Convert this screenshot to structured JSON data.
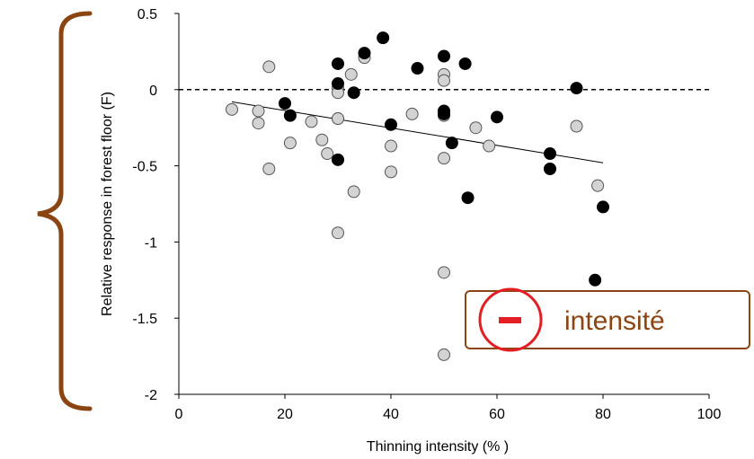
{
  "colors": {
    "bracket": "#8B4513",
    "badge_border": "#8B4513",
    "badge_text": "#8B4513",
    "minus_red": "#E31E24",
    "series_black": "#000000",
    "series_gray": "#D3D3D3"
  },
  "annotation": {
    "label": "intensité",
    "sign_icon": "minus-circle-icon"
  },
  "chart_data": {
    "type": "scatter",
    "title": "",
    "xlabel": "Thinning intensity (% )",
    "ylabel": "Relative response in forest floor (F)",
    "xlim": [
      0,
      100
    ],
    "ylim": [
      -2,
      0.5
    ],
    "x_ticks": [
      "0",
      "20",
      "40",
      "60",
      "80",
      "100"
    ],
    "y_ticks": [
      "0.5",
      "0",
      "-0.5",
      "-1",
      "-1.5",
      "-2"
    ],
    "grid": false,
    "reference_line": {
      "y": 0,
      "style": "dashed"
    },
    "trend_line": {
      "x": [
        10,
        80
      ],
      "y": [
        -0.08,
        -0.48
      ]
    },
    "series": [
      {
        "marker": "black-filled-circle",
        "points": [
          [
            20,
            -0.09
          ],
          [
            21,
            -0.17
          ],
          [
            30,
            0.17
          ],
          [
            30,
            0.04
          ],
          [
            30,
            -0.46
          ],
          [
            33,
            -0.02
          ],
          [
            35,
            0.24
          ],
          [
            38.5,
            0.34
          ],
          [
            40,
            -0.23
          ],
          [
            45,
            0.14
          ],
          [
            50,
            0.22
          ],
          [
            50,
            -0.14
          ],
          [
            50,
            -0.16
          ],
          [
            51.5,
            -0.35
          ],
          [
            54,
            0.17
          ],
          [
            54.5,
            -0.71
          ],
          [
            60,
            -0.18
          ],
          [
            70,
            -0.42
          ],
          [
            70,
            -0.52
          ],
          [
            75,
            0.01
          ],
          [
            78.5,
            -1.25
          ],
          [
            80,
            -0.77
          ]
        ]
      },
      {
        "marker": "gray-filled-circle",
        "points": [
          [
            10,
            -0.13
          ],
          [
            15,
            -0.14
          ],
          [
            15,
            -0.22
          ],
          [
            17,
            0.15
          ],
          [
            17,
            -0.52
          ],
          [
            21,
            -0.35
          ],
          [
            25,
            -0.21
          ],
          [
            27,
            -0.33
          ],
          [
            28,
            -0.42
          ],
          [
            30,
            0.01
          ],
          [
            30,
            -0.02
          ],
          [
            30,
            -0.19
          ],
          [
            30,
            -0.19
          ],
          [
            30,
            -0.94
          ],
          [
            32.5,
            0.1
          ],
          [
            33,
            -0.67
          ],
          [
            35,
            0.21
          ],
          [
            40,
            -0.37
          ],
          [
            40,
            -0.54
          ],
          [
            44,
            -0.16
          ],
          [
            50,
            0.1
          ],
          [
            50,
            0.06
          ],
          [
            50,
            -0.17
          ],
          [
            50,
            -0.45
          ],
          [
            50,
            -1.2
          ],
          [
            50,
            -1.74
          ],
          [
            56,
            -0.25
          ],
          [
            58.5,
            -0.37
          ],
          [
            75,
            -0.24
          ],
          [
            79,
            -0.63
          ]
        ]
      }
    ]
  }
}
